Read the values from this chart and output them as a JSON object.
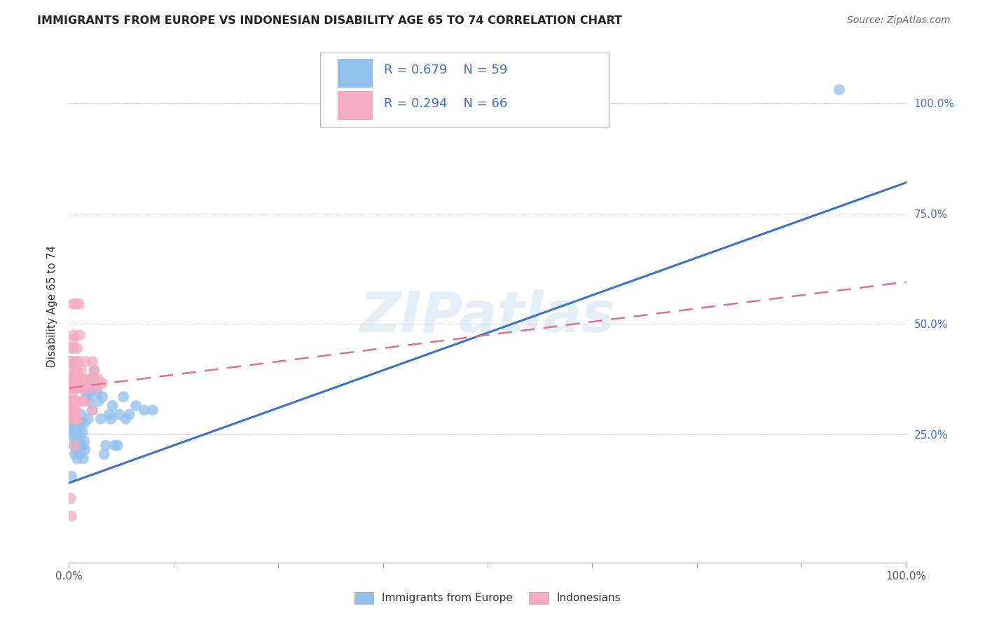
{
  "title": "IMMIGRANTS FROM EUROPE VS INDONESIAN DISABILITY AGE 65 TO 74 CORRELATION CHART",
  "source": "Source: ZipAtlas.com",
  "ylabel": "Disability Age 65 to 74",
  "legend_label1": "Immigrants from Europe",
  "legend_label2": "Indonesians",
  "legend_R1": "R = 0.679",
  "legend_N1": "N = 59",
  "legend_R2": "R = 0.294",
  "legend_N2": "N = 66",
  "color_blue": "#91C0ED",
  "color_pink": "#F4AABF",
  "color_blue_line": "#3A72C8",
  "color_pink_line": "#E07090",
  "watermark": "ZIPatlas",
  "blue_line_x0": 0.0,
  "blue_line_y0": 0.14,
  "blue_line_x1": 1.0,
  "blue_line_y1": 0.82,
  "pink_line_x0": 0.0,
  "pink_line_y0": 0.355,
  "pink_line_x1": 1.0,
  "pink_line_y1": 0.595,
  "blue_points": [
    [
      0.002,
      0.285
    ],
    [
      0.003,
      0.27
    ],
    [
      0.004,
      0.295
    ],
    [
      0.005,
      0.245
    ],
    [
      0.005,
      0.275
    ],
    [
      0.006,
      0.225
    ],
    [
      0.006,
      0.255
    ],
    [
      0.007,
      0.26
    ],
    [
      0.007,
      0.205
    ],
    [
      0.008,
      0.225
    ],
    [
      0.008,
      0.27
    ],
    [
      0.009,
      0.245
    ],
    [
      0.009,
      0.215
    ],
    [
      0.01,
      0.235
    ],
    [
      0.01,
      0.195
    ],
    [
      0.011,
      0.255
    ],
    [
      0.012,
      0.225
    ],
    [
      0.012,
      0.265
    ],
    [
      0.013,
      0.245
    ],
    [
      0.014,
      0.275
    ],
    [
      0.014,
      0.205
    ],
    [
      0.015,
      0.225
    ],
    [
      0.015,
      0.295
    ],
    [
      0.016,
      0.255
    ],
    [
      0.017,
      0.195
    ],
    [
      0.017,
      0.225
    ],
    [
      0.018,
      0.275
    ],
    [
      0.018,
      0.235
    ],
    [
      0.019,
      0.215
    ],
    [
      0.02,
      0.345
    ],
    [
      0.021,
      0.355
    ],
    [
      0.022,
      0.335
    ],
    [
      0.023,
      0.285
    ],
    [
      0.024,
      0.325
    ],
    [
      0.025,
      0.375
    ],
    [
      0.026,
      0.345
    ],
    [
      0.028,
      0.305
    ],
    [
      0.03,
      0.395
    ],
    [
      0.032,
      0.355
    ],
    [
      0.034,
      0.345
    ],
    [
      0.035,
      0.325
    ],
    [
      0.038,
      0.285
    ],
    [
      0.04,
      0.335
    ],
    [
      0.042,
      0.205
    ],
    [
      0.044,
      0.225
    ],
    [
      0.048,
      0.295
    ],
    [
      0.05,
      0.285
    ],
    [
      0.052,
      0.315
    ],
    [
      0.055,
      0.225
    ],
    [
      0.058,
      0.225
    ],
    [
      0.06,
      0.295
    ],
    [
      0.065,
      0.335
    ],
    [
      0.068,
      0.285
    ],
    [
      0.072,
      0.295
    ],
    [
      0.08,
      0.315
    ],
    [
      0.09,
      0.305
    ],
    [
      0.1,
      0.305
    ],
    [
      0.92,
      1.03
    ],
    [
      0.003,
      0.155
    ]
  ],
  "pink_points": [
    [
      0.001,
      0.285
    ],
    [
      0.001,
      0.305
    ],
    [
      0.002,
      0.325
    ],
    [
      0.002,
      0.375
    ],
    [
      0.002,
      0.355
    ],
    [
      0.003,
      0.395
    ],
    [
      0.003,
      0.415
    ],
    [
      0.003,
      0.445
    ],
    [
      0.003,
      0.365
    ],
    [
      0.004,
      0.375
    ],
    [
      0.004,
      0.325
    ],
    [
      0.004,
      0.285
    ],
    [
      0.004,
      0.345
    ],
    [
      0.005,
      0.355
    ],
    [
      0.005,
      0.305
    ],
    [
      0.005,
      0.285
    ],
    [
      0.005,
      0.445
    ],
    [
      0.005,
      0.465
    ],
    [
      0.006,
      0.375
    ],
    [
      0.006,
      0.325
    ],
    [
      0.006,
      0.365
    ],
    [
      0.006,
      0.305
    ],
    [
      0.007,
      0.355
    ],
    [
      0.007,
      0.395
    ],
    [
      0.007,
      0.285
    ],
    [
      0.008,
      0.365
    ],
    [
      0.008,
      0.415
    ],
    [
      0.008,
      0.305
    ],
    [
      0.009,
      0.375
    ],
    [
      0.009,
      0.325
    ],
    [
      0.01,
      0.355
    ],
    [
      0.01,
      0.395
    ],
    [
      0.01,
      0.285
    ],
    [
      0.011,
      0.355
    ],
    [
      0.012,
      0.415
    ],
    [
      0.012,
      0.545
    ],
    [
      0.013,
      0.475
    ],
    [
      0.014,
      0.355
    ],
    [
      0.015,
      0.395
    ],
    [
      0.015,
      0.325
    ],
    [
      0.016,
      0.375
    ],
    [
      0.017,
      0.355
    ],
    [
      0.018,
      0.325
    ],
    [
      0.019,
      0.375
    ],
    [
      0.02,
      0.415
    ],
    [
      0.022,
      0.355
    ],
    [
      0.025,
      0.375
    ],
    [
      0.028,
      0.415
    ],
    [
      0.03,
      0.395
    ],
    [
      0.032,
      0.355
    ],
    [
      0.035,
      0.375
    ],
    [
      0.002,
      0.105
    ],
    [
      0.003,
      0.065
    ],
    [
      0.004,
      0.375
    ],
    [
      0.006,
      0.285
    ],
    [
      0.007,
      0.225
    ],
    [
      0.005,
      0.545
    ],
    [
      0.03,
      0.375
    ],
    [
      0.028,
      0.305
    ],
    [
      0.001,
      0.415
    ],
    [
      0.003,
      0.375
    ],
    [
      0.005,
      0.475
    ],
    [
      0.002,
      0.355
    ],
    [
      0.04,
      0.365
    ],
    [
      0.008,
      0.545
    ],
    [
      0.01,
      0.445
    ]
  ],
  "xlim": [
    0.0,
    1.0
  ],
  "ylim": [
    -0.04,
    1.12
  ],
  "ytick_positions": [
    0.25,
    0.5,
    0.75,
    1.0
  ],
  "ytick_labels": [
    "25.0%",
    "50.0%",
    "75.0%",
    "100.0%"
  ],
  "xtick_positions": [
    0.0,
    0.125,
    0.25,
    0.375,
    0.5,
    0.625,
    0.75,
    0.875,
    1.0
  ],
  "grid_color": "#CCCCCC",
  "bg_color": "#FFFFFF",
  "title_fontsize": 11.5,
  "axis_label_fontsize": 11,
  "legend_fontsize": 12,
  "source_fontsize": 10
}
